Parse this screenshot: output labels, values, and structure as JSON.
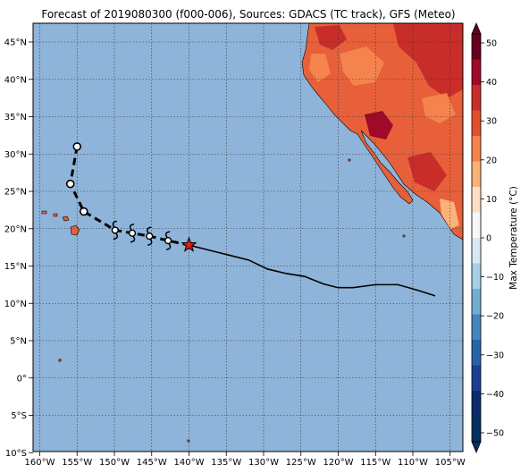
{
  "title": "Forecast of 2019080300 (f000-006), Sources: GDACS (TC track), GFS (Meteo)",
  "lon_ticks": [
    "160°W",
    "155°W",
    "150°W",
    "145°W",
    "140°W",
    "135°W",
    "130°W",
    "125°W",
    "120°W",
    "115°W",
    "110°W",
    "105°W"
  ],
  "lat_ticks": [
    "45°N",
    "40°N",
    "35°N",
    "30°N",
    "25°N",
    "20°N",
    "15°N",
    "10°N",
    "5°N",
    "0°",
    "5°S",
    "10°S"
  ],
  "colorbar": {
    "label": "Max Temperature (°C)",
    "ticks": [
      "50",
      "40",
      "30",
      "20",
      "10",
      "0",
      "−10",
      "−20",
      "−30",
      "−40",
      "−50"
    ],
    "colors": [
      "#67001f",
      "#9e0a27",
      "#c82d2a",
      "#e0502f",
      "#f4834e",
      "#fbb17a",
      "#fde0c4",
      "#f7f7f7",
      "#d6e9f2",
      "#a8d0e4",
      "#72aed2",
      "#4487bf",
      "#2564a9",
      "#1d3f8f",
      "#0d2a6b",
      "#053061"
    ]
  },
  "map": {
    "ocean_color": "#8fb4d9",
    "land_color": "#e7603a",
    "storm_marker_color": "#dd1c1c",
    "current_position": {
      "lon": -140.0,
      "lat": 17.8
    },
    "forecast_track": [
      {
        "lon": -155.0,
        "lat": 31.0,
        "type": "circle"
      },
      {
        "lon": -155.9,
        "lat": 26.0,
        "type": "circle"
      },
      {
        "lon": -154.1,
        "lat": 22.3,
        "type": "circle"
      },
      {
        "lon": -149.9,
        "lat": 19.8,
        "type": "hurricane"
      },
      {
        "lon": -147.6,
        "lat": 19.4,
        "type": "hurricane"
      },
      {
        "lon": -145.3,
        "lat": 19.0,
        "type": "hurricane"
      },
      {
        "lon": -142.8,
        "lat": 18.4,
        "type": "hurricane"
      }
    ],
    "past_track": [
      {
        "lon": -140.0,
        "lat": 17.8
      },
      {
        "lon": -136.0,
        "lat": 16.8
      },
      {
        "lon": -132.0,
        "lat": 15.8
      },
      {
        "lon": -129.5,
        "lat": 14.6
      },
      {
        "lon": -127.0,
        "lat": 14.0
      },
      {
        "lon": -124.5,
        "lat": 13.6
      },
      {
        "lon": -122.0,
        "lat": 12.6
      },
      {
        "lon": -120.0,
        "lat": 12.1
      },
      {
        "lon": -118.0,
        "lat": 12.1
      },
      {
        "lon": -115.0,
        "lat": 12.5
      },
      {
        "lon": -112.0,
        "lat": 12.5
      },
      {
        "lon": -109.5,
        "lat": 11.8
      },
      {
        "lon": -107.0,
        "lat": 11.0
      }
    ]
  }
}
